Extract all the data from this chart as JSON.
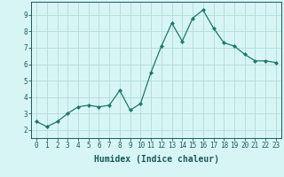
{
  "x": [
    0,
    1,
    2,
    3,
    4,
    5,
    6,
    7,
    8,
    9,
    10,
    11,
    12,
    13,
    14,
    15,
    16,
    17,
    18,
    19,
    20,
    21,
    22,
    23
  ],
  "y": [
    2.5,
    2.2,
    2.5,
    3.0,
    3.4,
    3.5,
    3.4,
    3.5,
    4.4,
    3.2,
    3.6,
    5.5,
    7.1,
    8.5,
    7.4,
    8.8,
    9.3,
    8.2,
    7.3,
    7.1,
    6.6,
    6.2,
    6.2,
    6.1
  ],
  "xlabel": "Humidex (Indice chaleur)",
  "line_color": "#1a7a6a",
  "marker": "D",
  "marker_size": 2.0,
  "bg_color": "#d8f5f5",
  "grid_color": "#b8dede",
  "xlim": [
    -0.5,
    23.5
  ],
  "ylim": [
    1.5,
    9.8
  ],
  "yticks": [
    2,
    3,
    4,
    5,
    6,
    7,
    8,
    9
  ],
  "xticks": [
    0,
    1,
    2,
    3,
    4,
    5,
    6,
    7,
    8,
    9,
    10,
    11,
    12,
    13,
    14,
    15,
    16,
    17,
    18,
    19,
    20,
    21,
    22,
    23
  ],
  "xtick_labels": [
    "0",
    "1",
    "2",
    "3",
    "4",
    "5",
    "6",
    "7",
    "8",
    "9",
    "10",
    "11",
    "12",
    "13",
    "14",
    "15",
    "16",
    "17",
    "18",
    "19",
    "20",
    "21",
    "22",
    "23"
  ],
  "tick_color": "#1a5a5a",
  "xlabel_fontsize": 7,
  "tick_fontsize": 5.5,
  "linewidth": 0.9
}
